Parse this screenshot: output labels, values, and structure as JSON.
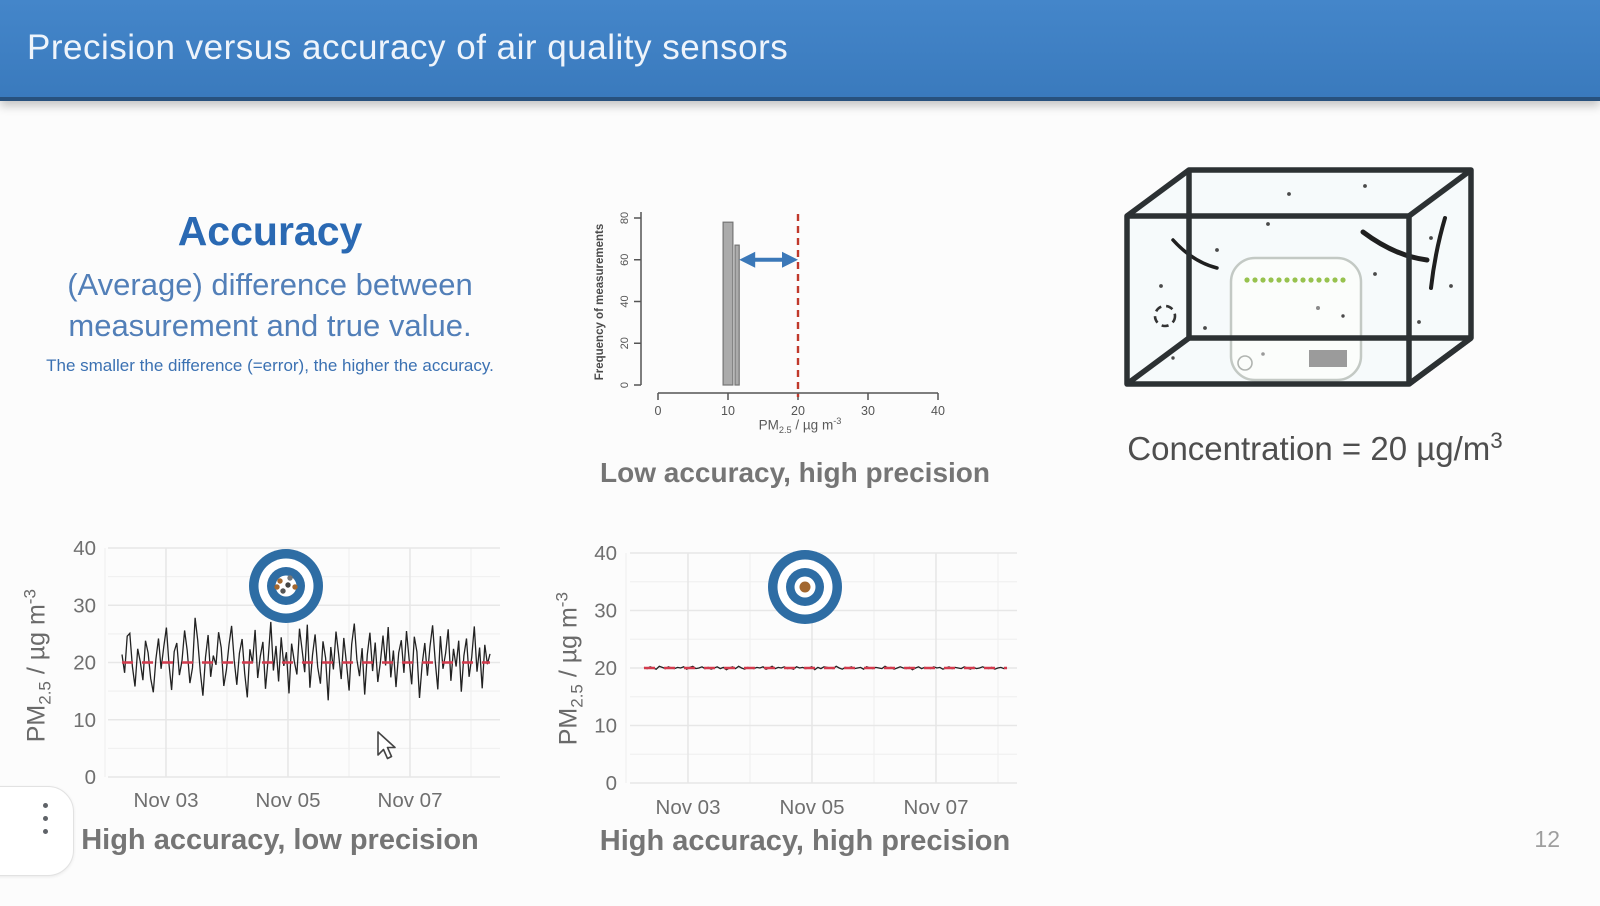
{
  "header": {
    "title": "Precision versus accuracy of air quality sensors"
  },
  "accuracy": {
    "heading": "Accuracy",
    "line1": "(Average) difference between",
    "line2": "measurement and true value.",
    "note": "The smaller the difference (=error), the higher the accuracy."
  },
  "units": {
    "base": "PM",
    "sub": "2.5",
    "mid": " / µg m",
    "sup": "-3"
  },
  "concentration": {
    "base": "Concentration = 20 µg/m",
    "sup": "3"
  },
  "page_number": "12",
  "icons": {
    "kebab_menu": "vertical-three-dots",
    "target": "bullseye",
    "arrow": "double-headed-horizontal"
  },
  "colors": {
    "header_blue": "#3a7abd",
    "accent_blue": "#2a69b3",
    "target_ring": "#2e6da4",
    "target_dot": "#a2672f",
    "reference_red": "#d23b4d",
    "caption_gray": "#757575"
  },
  "chart_data": [
    {
      "id": "histogram",
      "type": "bar",
      "title": "Low accuracy, high precision",
      "ylabel": "Frequency of measurements",
      "xlabel": "PM2.5 / µg m-3",
      "xlim": [
        0,
        40
      ],
      "ylim": [
        0,
        80
      ],
      "xticks": [
        0,
        10,
        20,
        30,
        40
      ],
      "yticks": [
        0,
        20,
        40,
        60,
        80
      ],
      "bars": [
        {
          "x": 10,
          "width": 1.4,
          "height": 78
        },
        {
          "x": 11.3,
          "width": 0.6,
          "height": 67
        }
      ],
      "true_value_line_x": 20,
      "arrow": {
        "from_x": 11.6,
        "to_x": 20,
        "y": 60
      },
      "colors": {
        "bar": "#ababab",
        "bar_edge": "#757575",
        "line": "#c0392b",
        "arrow": "#3b78b8",
        "axis": "#555555"
      }
    },
    {
      "id": "low-precision-series",
      "type": "line",
      "caption": "High accuracy, low precision",
      "x_tick_labels": [
        "Nov 03",
        "Nov 05",
        "Nov 07"
      ],
      "ylim": [
        0,
        40
      ],
      "yticks": [
        40,
        30,
        20,
        10,
        0
      ],
      "reference_value": 20,
      "target": {
        "style": "scattered"
      },
      "colors": {
        "line": "#222222",
        "reference": "#d23b4d",
        "grid": "#e7e7e7",
        "tick_text": "#6f6f6f"
      },
      "values": [
        21.4,
        18.2,
        24.6,
        25.1,
        19.3,
        15.8,
        22.4,
        20.1,
        16.9,
        23.8,
        21.7,
        17.2,
        14.8,
        20.6,
        24.2,
        18.9,
        22.8,
        26.1,
        19.7,
        15.2,
        21.9,
        23.4,
        17.8,
        20.3,
        25.6,
        22.1,
        16.4,
        19.1,
        27.8,
        23.9,
        18.4,
        14.2,
        20.9,
        24.8,
        17.5,
        21.2,
        19.6,
        25.3,
        22.6,
        15.9,
        18.7,
        23.1,
        26.4,
        20.4,
        16.1,
        21.6,
        24.1,
        18.1,
        13.9,
        22.3,
        19.9,
        25.7,
        17.3,
        21.1,
        23.6,
        15.4,
        20.7,
        27.1,
        18.6,
        22.9,
        16.7,
        24.4,
        19.4,
        21.8,
        14.6,
        23.3,
        20.2,
        17.9,
        25.9,
        22.2,
        18.3,
        26.6,
        15.6,
        21.3,
        24.9,
        19.2,
        16.3,
        23.7,
        20.8,
        13.4,
        22.7,
        18.8,
        25.4,
        21.5,
        17.1,
        24.3,
        19.8,
        15.1,
        23.2,
        26.8,
        20.5,
        17.6,
        22.5,
        14.4,
        21.4,
        25.2,
        18.5,
        23.5,
        16.6,
        20.1,
        24.7,
        19.5,
        26.2,
        17.4,
        22.1,
        15.7,
        21.7,
        23.9,
        18.2,
        25.5,
        20.6,
        16.2,
        24.5,
        21.9,
        13.8,
        19.6,
        23.4,
        17.7,
        22.8,
        26.5,
        20.3,
        15.3,
        24.6,
        18.9,
        21.6,
        25.8,
        16.8,
        22.4,
        19.3,
        23.8,
        14.9,
        21.2,
        24.2,
        17.5,
        20.9,
        26.3,
        18.4,
        22.6,
        15.5,
        23.1,
        19.7,
        21.5
      ]
    },
    {
      "id": "high-precision-series",
      "type": "line",
      "caption": "High accuracy, high precision",
      "x_tick_labels": [
        "Nov 03",
        "Nov 05",
        "Nov 07"
      ],
      "ylim": [
        0,
        40
      ],
      "yticks": [
        40,
        30,
        20,
        10,
        0
      ],
      "reference_value": 20,
      "target": {
        "style": "centered"
      },
      "colors": {
        "line": "#222222",
        "reference": "#d23b4d",
        "grid": "#e7e7e7",
        "tick_text": "#6f6f6f"
      },
      "values": [
        20.1,
        19.9,
        20.2,
        20.0,
        19.8,
        20.3,
        20.1,
        19.9,
        20.2,
        20.0,
        19.9,
        20.1,
        20.0,
        20.2,
        19.8,
        20.1,
        20.3,
        19.9,
        20.0,
        20.2,
        19.9,
        20.1,
        19.8,
        20.0,
        20.2,
        19.9,
        20.1,
        19.7,
        20.0,
        20.2,
        19.9,
        20.3,
        20.0,
        19.8,
        20.1,
        20.0,
        19.9,
        20.1,
        20.0,
        20.2,
        19.8,
        20.0,
        20.3,
        19.9,
        20.1,
        20.0,
        20.2,
        19.9,
        20.0,
        19.8,
        20.2,
        20.0,
        20.1,
        19.9,
        20.0,
        20.2,
        19.7,
        20.1,
        19.9,
        20.2,
        20.1,
        20.0,
        19.9,
        20.3,
        20.0,
        19.8,
        20.1,
        20.0,
        20.2,
        19.9,
        20.0,
        20.1,
        19.8,
        20.2,
        20.0,
        19.9,
        20.1,
        20.0,
        19.9,
        20.3,
        20.0,
        20.1,
        19.8,
        20.0,
        20.2,
        20.0,
        19.9,
        20.1,
        19.7,
        20.0,
        20.2,
        19.9,
        20.1,
        20.0,
        19.9,
        20.2,
        20.0,
        20.1,
        19.8,
        20.0,
        20.2,
        19.9,
        20.1,
        20.0,
        19.9,
        20.2,
        20.0,
        19.8,
        20.1,
        19.9,
        20.0,
        20.2,
        20.0,
        19.9,
        20.1,
        19.8,
        20.0,
        20.1,
        19.9,
        20.0
      ]
    }
  ]
}
